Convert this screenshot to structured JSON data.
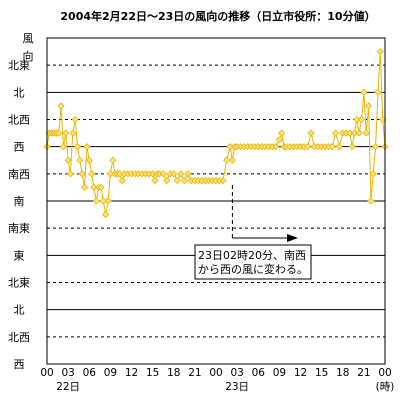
{
  "chart_data": {
    "type": "line",
    "title": "2004年2月22日～23日の風向の推移（日立市役所：10分値）",
    "ylabel": "風向",
    "y_categories": [
      "西",
      "北西",
      "北",
      "北東",
      "東",
      "南東",
      "南",
      "南西",
      "西",
      "北西",
      "北",
      "北東"
    ],
    "x_ticks": [
      "00",
      "03",
      "06",
      "09",
      "12",
      "15",
      "18",
      "21",
      "00",
      "03",
      "06",
      "09",
      "12",
      "15",
      "18",
      "21",
      "00"
    ],
    "x_unit": "(時)",
    "day_labels": [
      {
        "tick": "03",
        "label": "22日"
      },
      {
        "tick": "03",
        "label": "23日"
      }
    ],
    "xlim_hours": [
      0,
      48
    ],
    "grid": {
      "solid_directions": [
        "西",
        "南",
        "東",
        "北"
      ],
      "dashed_directions": [
        "北西",
        "北東",
        "南東",
        "南西"
      ]
    },
    "series": [
      {
        "color": "#e8b400",
        "marker_fill": "#ffe37a",
        "points": [
          [
            0,
            8
          ],
          [
            0.33,
            8.5
          ],
          [
            0.67,
            8.5
          ],
          [
            1.0,
            8.5
          ],
          [
            1.33,
            8.5
          ],
          [
            1.67,
            8.5
          ],
          [
            2.0,
            9.5
          ],
          [
            2.33,
            8.0
          ],
          [
            2.67,
            8.5
          ],
          [
            3.0,
            7.5
          ],
          [
            3.33,
            7.0
          ],
          [
            3.67,
            8.5
          ],
          [
            4.0,
            9.0
          ],
          [
            4.33,
            8.0
          ],
          [
            4.67,
            7.5
          ],
          [
            5.0,
            7.0
          ],
          [
            5.33,
            6.5
          ],
          [
            5.67,
            8.0
          ],
          [
            6.0,
            7.5
          ],
          [
            6.33,
            7.0
          ],
          [
            6.67,
            6.5
          ],
          [
            7.0,
            6.0
          ],
          [
            7.33,
            6.5
          ],
          [
            7.67,
            6.5
          ],
          [
            8.0,
            6.0
          ],
          [
            8.33,
            5.5
          ],
          [
            8.67,
            6.0
          ],
          [
            9.0,
            7.0
          ],
          [
            9.33,
            7.5
          ],
          [
            9.67,
            7.0
          ],
          [
            10.0,
            7.0
          ],
          [
            10.33,
            7.0
          ],
          [
            10.67,
            6.75
          ],
          [
            11.0,
            7.0
          ],
          [
            11.5,
            7.0
          ],
          [
            12.0,
            7.0
          ],
          [
            12.5,
            7.0
          ],
          [
            13.0,
            7.0
          ],
          [
            13.5,
            7.0
          ],
          [
            14.0,
            7.0
          ],
          [
            14.5,
            7.0
          ],
          [
            15.0,
            7.0
          ],
          [
            15.33,
            6.75
          ],
          [
            15.67,
            7.0
          ],
          [
            16.0,
            7.0
          ],
          [
            16.5,
            7.0
          ],
          [
            17.0,
            6.75
          ],
          [
            17.5,
            7.0
          ],
          [
            18.0,
            7.0
          ],
          [
            18.5,
            6.75
          ],
          [
            19.0,
            7.0
          ],
          [
            19.5,
            6.75
          ],
          [
            20.0,
            7.0
          ],
          [
            20.5,
            6.75
          ],
          [
            21.0,
            6.75
          ],
          [
            21.5,
            6.75
          ],
          [
            22.0,
            6.75
          ],
          [
            22.5,
            6.75
          ],
          [
            23.0,
            6.75
          ],
          [
            23.5,
            6.75
          ],
          [
            24.0,
            6.75
          ],
          [
            24.5,
            6.75
          ],
          [
            25.0,
            6.75
          ],
          [
            25.5,
            7.5
          ],
          [
            26.0,
            8.0
          ],
          [
            26.33,
            7.5
          ],
          [
            26.67,
            8.0
          ],
          [
            27.0,
            8.0
          ],
          [
            27.5,
            8.0
          ],
          [
            28.0,
            8.0
          ],
          [
            28.5,
            8.0
          ],
          [
            29.0,
            8.0
          ],
          [
            29.5,
            8.0
          ],
          [
            30.0,
            8.0
          ],
          [
            30.5,
            8.0
          ],
          [
            31.0,
            8.0
          ],
          [
            31.5,
            8.0
          ],
          [
            32.0,
            8.0
          ],
          [
            32.5,
            8.0
          ],
          [
            33.0,
            8.25
          ],
          [
            33.33,
            8.5
          ],
          [
            33.67,
            8.0
          ],
          [
            34.0,
            8.0
          ],
          [
            34.5,
            8.0
          ],
          [
            35.0,
            8.0
          ],
          [
            35.5,
            8.0
          ],
          [
            36.0,
            8.0
          ],
          [
            36.5,
            8.0
          ],
          [
            37.0,
            8.0
          ],
          [
            37.5,
            8.5
          ],
          [
            38.0,
            8.0
          ],
          [
            38.5,
            8.0
          ],
          [
            39.0,
            8.0
          ],
          [
            39.5,
            8.0
          ],
          [
            40.0,
            8.0
          ],
          [
            40.5,
            8.0
          ],
          [
            41.0,
            8.5
          ],
          [
            41.5,
            8.0
          ],
          [
            42.0,
            8.5
          ],
          [
            42.5,
            8.5
          ],
          [
            43.0,
            8.5
          ],
          [
            43.33,
            8.0
          ],
          [
            43.67,
            8.5
          ],
          [
            44.0,
            9.0
          ],
          [
            44.33,
            8.5
          ],
          [
            44.67,
            9.0
          ],
          [
            45.0,
            10.0
          ],
          [
            45.33,
            8.5
          ],
          [
            45.67,
            9.5
          ],
          [
            46.0,
            6.0
          ],
          [
            46.33,
            7.0
          ],
          [
            46.67,
            8.0
          ],
          [
            47.0,
            10.0
          ],
          [
            47.33,
            11.5
          ],
          [
            47.67,
            9.0
          ],
          [
            48.0,
            8.0
          ]
        ]
      }
    ],
    "annotation": {
      "lines": [
        "23日02時20分、南西",
        "から西の風に変わる。"
      ],
      "marker_hour": 26.33
    }
  }
}
